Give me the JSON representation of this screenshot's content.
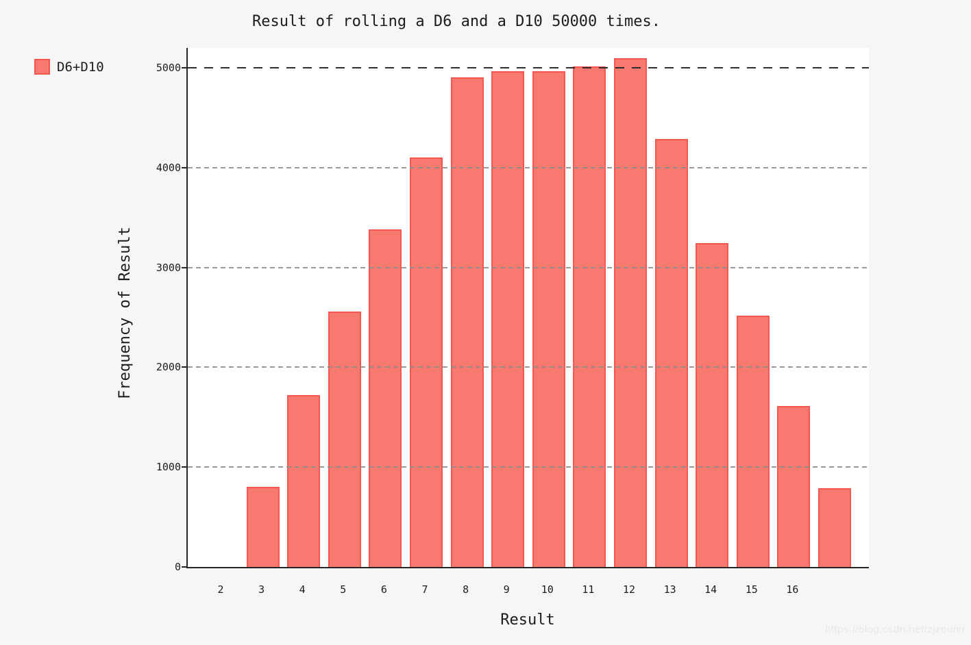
{
  "title": "Result of rolling a D6 and a D10 50000 times.",
  "legend": {
    "label": "D6+D10"
  },
  "watermark": {
    "text": "https://blog.csdn.net/zjzounir"
  },
  "colors": {
    "bar_fill": "#f77970",
    "bar_edge": "#f3574f",
    "grid": "#8c8c8c",
    "reference_line": "#2d2d2d",
    "axis": "#262626",
    "page_background": "#f6f6f6",
    "plot_background": "#ffffff",
    "text": "#1c1c1c",
    "watermark": "#e7e7e7"
  },
  "chart_data": {
    "type": "bar",
    "title": "Result of rolling a D6 and a D10 50000 times.",
    "xlabel": "Result",
    "ylabel": "Frequency of Result",
    "legend_entries": [
      "D6+D10"
    ],
    "legend_position": "upper left, outside plot",
    "x_tick_labels": [
      "2",
      "3",
      "4",
      "5",
      "6",
      "7",
      "8",
      "9",
      "10",
      "11",
      "12",
      "13",
      "14",
      "15",
      "16"
    ],
    "x_tick_slots": [
      2,
      3,
      4,
      5,
      6,
      7,
      8,
      9,
      10,
      11,
      12,
      13,
      14,
      15,
      16
    ],
    "bar_slots": [
      3,
      4,
      5,
      6,
      7,
      8,
      9,
      10,
      11,
      12,
      13,
      14,
      15,
      16,
      17
    ],
    "values": [
      800,
      1720,
      2560,
      3385,
      4100,
      4905,
      4970,
      4965,
      5015,
      5095,
      4290,
      3245,
      2520,
      1615,
      790
    ],
    "note_layout": "15 bars centered on slots 3-17; slot 2 empty, slot 17 unlabeled; bars sit one slot right of their tick label",
    "y_ticks": [
      0,
      1000,
      2000,
      3000,
      4000,
      5000
    ],
    "ylim": [
      0,
      5200
    ],
    "grid": "horizontal dashed gray at 1000-4000",
    "reference_line_y": 5000
  }
}
